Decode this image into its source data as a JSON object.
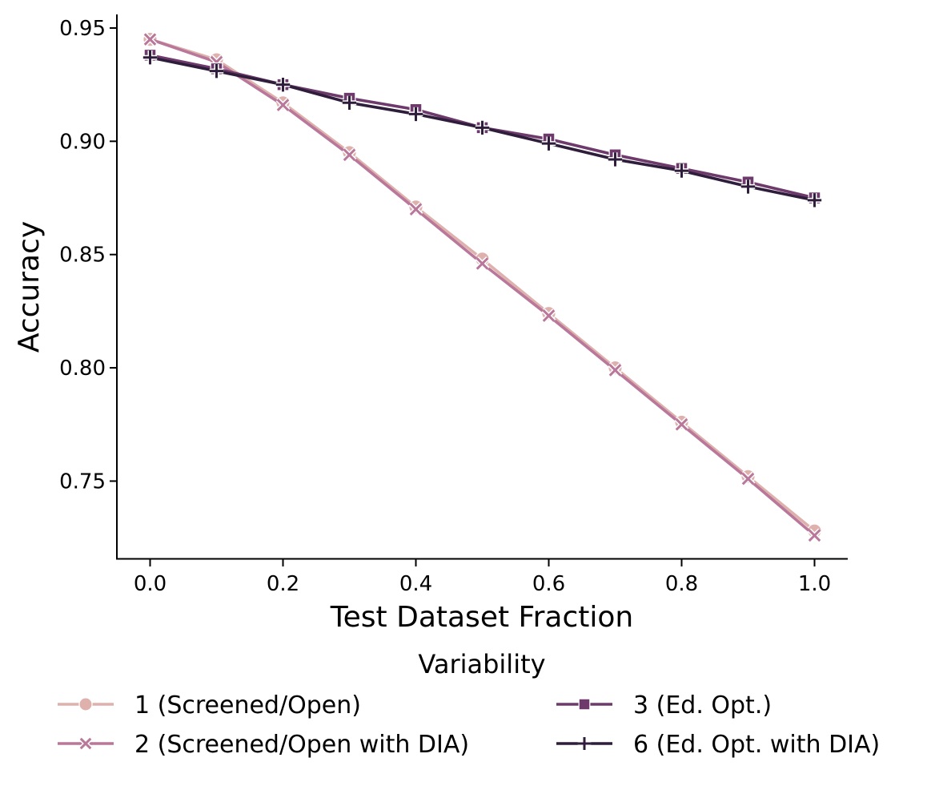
{
  "chart_data": {
    "type": "line",
    "title": "",
    "xlabel": "Test Dataset Fraction",
    "ylabel": "Accuracy",
    "xlim": [
      -0.05,
      1.05
    ],
    "ylim": [
      0.7155,
      0.956
    ],
    "x": [
      0.0,
      0.1,
      0.2,
      0.3,
      0.4,
      0.5,
      0.6,
      0.7,
      0.8,
      0.9,
      1.0
    ],
    "xticks": [
      0.0,
      0.2,
      0.4,
      0.6,
      0.8,
      1.0
    ],
    "xtick_labels": [
      "0.0",
      "0.2",
      "0.4",
      "0.6",
      "0.8",
      "1.0"
    ],
    "yticks": [
      0.75,
      0.8,
      0.85,
      0.9,
      0.95
    ],
    "ytick_labels": [
      "0.75",
      "0.80",
      "0.85",
      "0.90",
      "0.95"
    ],
    "grid": false,
    "legend": {
      "title": "Variability",
      "placement": "bottom-center"
    },
    "series": [
      {
        "name": "1 (Screened/Open)",
        "marker": "circle",
        "color": "#dfb1ad",
        "values": [
          0.945,
          0.936,
          0.917,
          0.895,
          0.871,
          0.848,
          0.824,
          0.8,
          0.776,
          0.752,
          0.728
        ]
      },
      {
        "name": "2 (Screened/Open with DIA)",
        "marker": "x",
        "color": "#b9779a",
        "values": [
          0.945,
          0.935,
          0.916,
          0.894,
          0.87,
          0.846,
          0.823,
          0.799,
          0.775,
          0.751,
          0.726
        ]
      },
      {
        "name": "3 (Ed. Opt.)",
        "marker": "square",
        "color": "#6e3a6c",
        "values": [
          0.938,
          0.932,
          0.925,
          0.919,
          0.914,
          0.906,
          0.901,
          0.894,
          0.888,
          0.882,
          0.875
        ]
      },
      {
        "name": "6 (Ed. Opt. with DIA)",
        "marker": "plus",
        "color": "#2e1e3b",
        "values": [
          0.937,
          0.931,
          0.925,
          0.917,
          0.912,
          0.906,
          0.899,
          0.892,
          0.887,
          0.88,
          0.874
        ]
      }
    ]
  }
}
